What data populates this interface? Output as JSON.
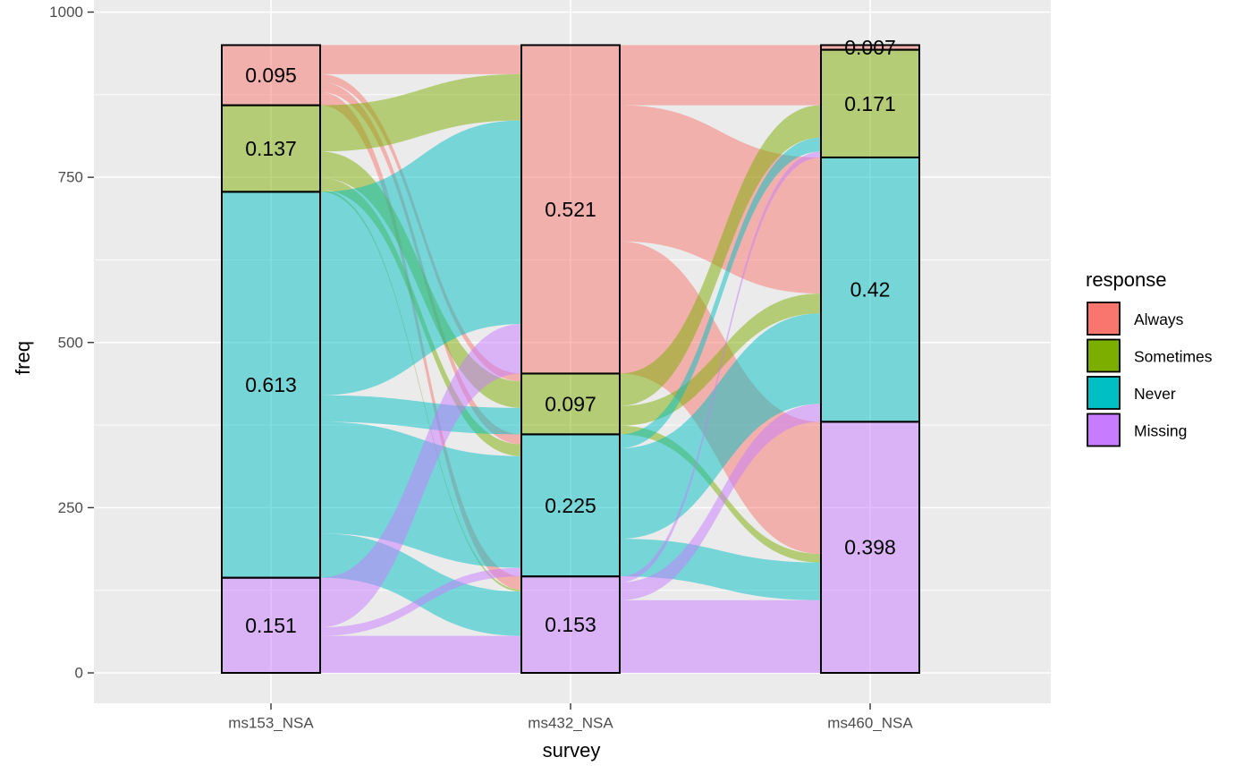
{
  "chart_data": {
    "type": "alluvial",
    "title": "",
    "xlabel": "survey",
    "ylabel": "freq",
    "ylim": [
      -37,
      1000
    ],
    "y_ticks": [
      0,
      250,
      500,
      750,
      1000
    ],
    "y_tick_labels": [
      "0",
      "250",
      "500",
      "750",
      "1000"
    ],
    "categories": [
      "ms153_NSA",
      "ms432_NSA",
      "ms460_NSA"
    ],
    "grid": true,
    "legend": {
      "title": "response",
      "position": "right",
      "entries": [
        "Always",
        "Sometimes",
        "Never",
        "Missing"
      ]
    },
    "colors": {
      "Always": "#F8766D",
      "Sometimes": "#7CAE00",
      "Never": "#00BFC4",
      "Missing": "#C77CFF",
      "panel": "#EBEBEB",
      "grid": "#FFFFFF"
    },
    "strata_order_top_to_bottom": [
      "Always",
      "Sometimes",
      "Never",
      "Missing"
    ],
    "strata": [
      {
        "survey": "ms153_NSA",
        "response": "Always",
        "freq": 91,
        "label": "0.095"
      },
      {
        "survey": "ms153_NSA",
        "response": "Sometimes",
        "freq": 131,
        "label": "0.137"
      },
      {
        "survey": "ms153_NSA",
        "response": "Never",
        "freq": 584,
        "label": "0.613"
      },
      {
        "survey": "ms153_NSA",
        "response": "Missing",
        "freq": 144,
        "label": "0.151"
      },
      {
        "survey": "ms432_NSA",
        "response": "Always",
        "freq": 497,
        "label": "0.521"
      },
      {
        "survey": "ms432_NSA",
        "response": "Sometimes",
        "freq": 92,
        "label": "0.097"
      },
      {
        "survey": "ms432_NSA",
        "response": "Never",
        "freq": 215,
        "label": "0.225"
      },
      {
        "survey": "ms432_NSA",
        "response": "Missing",
        "freq": 146,
        "label": "0.153"
      },
      {
        "survey": "ms460_NSA",
        "response": "Always",
        "freq": 7,
        "label": "0.007"
      },
      {
        "survey": "ms460_NSA",
        "response": "Sometimes",
        "freq": 163,
        "label": "0.171"
      },
      {
        "survey": "ms460_NSA",
        "response": "Never",
        "freq": 400,
        "label": "0.42"
      },
      {
        "survey": "ms460_NSA",
        "response": "Missing",
        "freq": 380,
        "label": "0.398"
      }
    ],
    "flows": [
      {
        "from_survey": "ms153_NSA",
        "to_survey": "ms432_NSA",
        "from": "Always",
        "to": "Always",
        "freq": 44
      },
      {
        "from_survey": "ms153_NSA",
        "to_survey": "ms432_NSA",
        "from": "Always",
        "to": "Sometimes",
        "freq": 12
      },
      {
        "from_survey": "ms153_NSA",
        "to_survey": "ms432_NSA",
        "from": "Always",
        "to": "Never",
        "freq": 15
      },
      {
        "from_survey": "ms153_NSA",
        "to_survey": "ms432_NSA",
        "from": "Always",
        "to": "Missing",
        "freq": 20
      },
      {
        "from_survey": "ms153_NSA",
        "to_survey": "ms432_NSA",
        "from": "Sometimes",
        "to": "Always",
        "freq": 70
      },
      {
        "from_survey": "ms153_NSA",
        "to_survey": "ms432_NSA",
        "from": "Sometimes",
        "to": "Sometimes",
        "freq": 40
      },
      {
        "from_survey": "ms153_NSA",
        "to_survey": "ms432_NSA",
        "from": "Sometimes",
        "to": "Never",
        "freq": 18
      },
      {
        "from_survey": "ms153_NSA",
        "to_survey": "ms432_NSA",
        "from": "Sometimes",
        "to": "Missing",
        "freq": 3
      },
      {
        "from_survey": "ms153_NSA",
        "to_survey": "ms432_NSA",
        "from": "Never",
        "to": "Always",
        "freq": 308
      },
      {
        "from_survey": "ms153_NSA",
        "to_survey": "ms432_NSA",
        "from": "Never",
        "to": "Sometimes",
        "freq": 40
      },
      {
        "from_survey": "ms153_NSA",
        "to_survey": "ms432_NSA",
        "from": "Never",
        "to": "Never",
        "freq": 169
      },
      {
        "from_survey": "ms153_NSA",
        "to_survey": "ms432_NSA",
        "from": "Never",
        "to": "Missing",
        "freq": 67
      },
      {
        "from_survey": "ms153_NSA",
        "to_survey": "ms432_NSA",
        "from": "Missing",
        "to": "Always",
        "freq": 75
      },
      {
        "from_survey": "ms153_NSA",
        "to_survey": "ms432_NSA",
        "from": "Missing",
        "to": "Never",
        "freq": 13
      },
      {
        "from_survey": "ms153_NSA",
        "to_survey": "ms432_NSA",
        "from": "Missing",
        "to": "Missing",
        "freq": 56
      },
      {
        "from_survey": "ms432_NSA",
        "to_survey": "ms460_NSA",
        "from": "Always",
        "to": "Always",
        "freq": 7
      },
      {
        "from_survey": "ms432_NSA",
        "to_survey": "ms460_NSA",
        "from": "Always",
        "to": "Sometimes",
        "freq": 84
      },
      {
        "from_survey": "ms432_NSA",
        "to_survey": "ms460_NSA",
        "from": "Always",
        "to": "Never",
        "freq": 206
      },
      {
        "from_survey": "ms432_NSA",
        "to_survey": "ms460_NSA",
        "from": "Always",
        "to": "Missing",
        "freq": 200
      },
      {
        "from_survey": "ms432_NSA",
        "to_survey": "ms460_NSA",
        "from": "Sometimes",
        "to": "Sometimes",
        "freq": 49
      },
      {
        "from_survey": "ms432_NSA",
        "to_survey": "ms460_NSA",
        "from": "Sometimes",
        "to": "Never",
        "freq": 30
      },
      {
        "from_survey": "ms432_NSA",
        "to_survey": "ms460_NSA",
        "from": "Sometimes",
        "to": "Missing",
        "freq": 13
      },
      {
        "from_survey": "ms432_NSA",
        "to_survey": "ms460_NSA",
        "from": "Never",
        "to": "Sometimes",
        "freq": 21
      },
      {
        "from_survey": "ms432_NSA",
        "to_survey": "ms460_NSA",
        "from": "Never",
        "to": "Never",
        "freq": 137
      },
      {
        "from_survey": "ms432_NSA",
        "to_survey": "ms460_NSA",
        "from": "Never",
        "to": "Missing",
        "freq": 57
      },
      {
        "from_survey": "ms432_NSA",
        "to_survey": "ms460_NSA",
        "from": "Missing",
        "to": "Sometimes",
        "freq": 9
      },
      {
        "from_survey": "ms432_NSA",
        "to_survey": "ms460_NSA",
        "from": "Missing",
        "to": "Never",
        "freq": 27
      },
      {
        "from_survey": "ms432_NSA",
        "to_survey": "ms460_NSA",
        "from": "Missing",
        "to": "Missing",
        "freq": 110
      }
    ]
  }
}
